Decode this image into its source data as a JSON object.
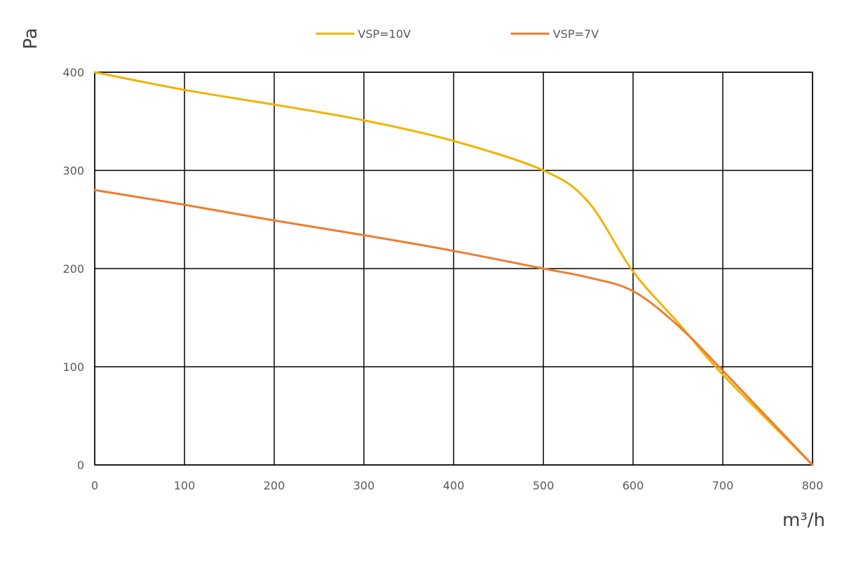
{
  "chart_data": {
    "type": "line",
    "xlabel": "m³/h",
    "ylabel": "Pa",
    "xlim": [
      0,
      800
    ],
    "ylim": [
      0,
      400
    ],
    "x_ticks": [
      0,
      100,
      200,
      300,
      400,
      500,
      600,
      700,
      800
    ],
    "y_ticks": [
      0,
      100,
      200,
      300,
      400
    ],
    "grid": true,
    "legend_position": "top-center",
    "series": [
      {
        "name": "VSP=10V",
        "color": "#F0B400",
        "points": [
          [
            0,
            400
          ],
          [
            100,
            382
          ],
          [
            200,
            367
          ],
          [
            300,
            351
          ],
          [
            400,
            330
          ],
          [
            500,
            300
          ],
          [
            550,
            268
          ],
          [
            600,
            197
          ],
          [
            650,
            145
          ],
          [
            700,
            92
          ],
          [
            800,
            0
          ]
        ]
      },
      {
        "name": "VSP=7V",
        "color": "#EE7D31",
        "points": [
          [
            0,
            280
          ],
          [
            100,
            265
          ],
          [
            200,
            249
          ],
          [
            300,
            234
          ],
          [
            400,
            218
          ],
          [
            500,
            200
          ],
          [
            550,
            191
          ],
          [
            600,
            177
          ],
          [
            650,
            142
          ],
          [
            700,
            96
          ],
          [
            800,
            0
          ]
        ]
      }
    ]
  }
}
